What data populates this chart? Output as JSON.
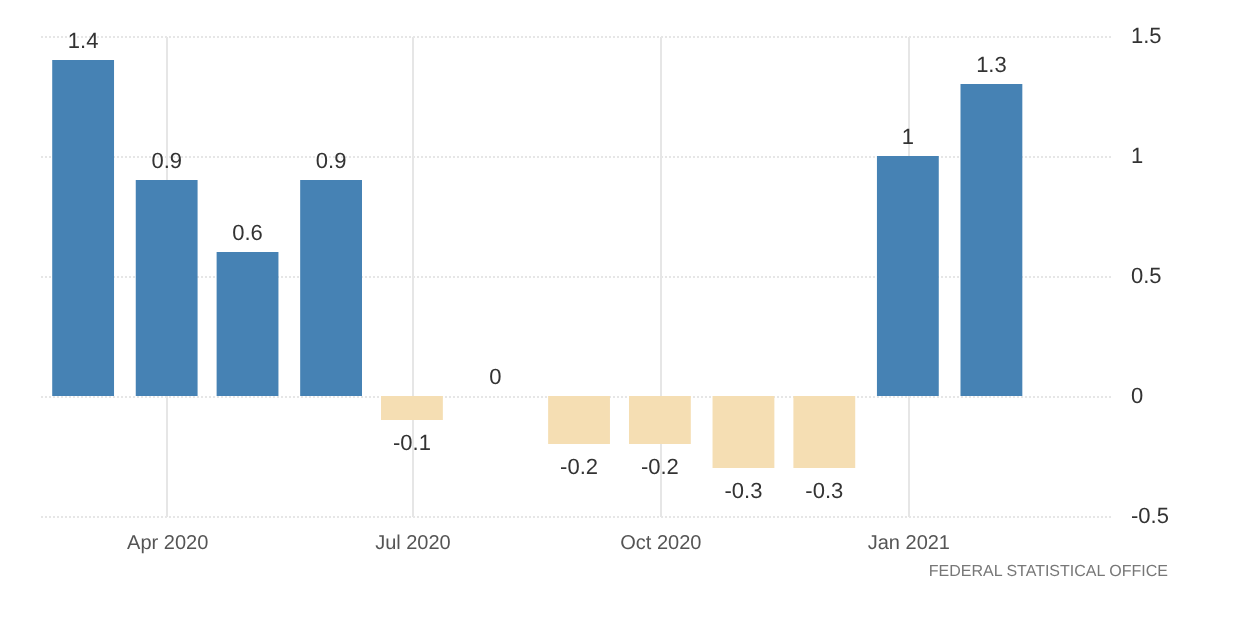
{
  "chart_data": {
    "type": "bar",
    "x": [
      "2020-03",
      "2020-04",
      "2020-05",
      "2020-06",
      "2020-07",
      "2020-08",
      "2020-09",
      "2020-10",
      "2020-11",
      "2020-12",
      "2021-01",
      "2021-02"
    ],
    "values": [
      1.4,
      0.9,
      0.6,
      0.9,
      -0.1,
      0,
      -0.2,
      -0.2,
      -0.3,
      -0.3,
      1,
      1.3
    ],
    "colors": [
      "#4682b4",
      "#4682b4",
      "#4682b4",
      "#4682b4",
      "#f5deb3",
      "#f5deb3",
      "#f5deb3",
      "#f5deb3",
      "#f5deb3",
      "#f5deb3",
      "#4682b4",
      "#4682b4"
    ],
    "xlim": [
      "2020-02-14",
      "2021-03-17"
    ],
    "xticks": [
      {
        "value": "2020-04",
        "label": "Apr 2020"
      },
      {
        "value": "2020-07",
        "label": "Jul 2020"
      },
      {
        "value": "2020-10",
        "label": "Oct 2020"
      },
      {
        "value": "2021-01",
        "label": "Jan 2021"
      }
    ],
    "ylim": [
      -0.5,
      1.5
    ],
    "yticks": [
      -0.5,
      0,
      0.5,
      1,
      1.5
    ],
    "grid": true,
    "data_labels": true,
    "annotations": [
      "FEDERAL STATISTICAL OFFICE"
    ]
  }
}
